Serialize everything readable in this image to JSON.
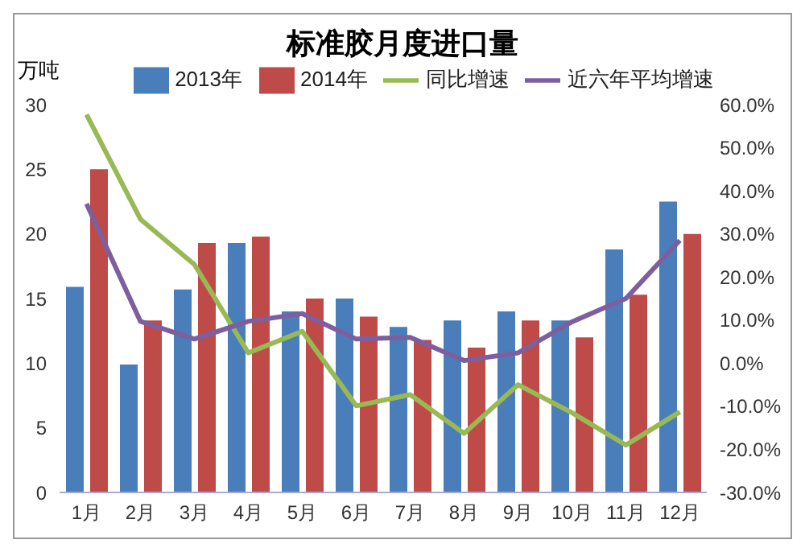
{
  "chart_data": {
    "type": "bar",
    "title": "标准胶月度进口量",
    "ylabel": "万吨",
    "categories": [
      "1月",
      "2月",
      "3月",
      "4月",
      "5月",
      "6月",
      "7月",
      "8月",
      "9月",
      "10月",
      "11月",
      "12月"
    ],
    "series": [
      {
        "name": "2013年",
        "color": "#4a7ebb",
        "values": [
          15.9,
          9.9,
          15.7,
          19.3,
          14,
          15,
          12.8,
          13.3,
          14,
          13.3,
          18.8,
          22.5
        ]
      },
      {
        "name": "2014年",
        "color": "#be4b48",
        "values": [
          25,
          13.3,
          19.3,
          19.8,
          15,
          13.6,
          11.8,
          11.2,
          13.3,
          12,
          15.3,
          20
        ]
      },
      {
        "name": "同比增速",
        "type": "line",
        "axis": "y2",
        "color": "#98b954",
        "values": [
          57.7,
          33.4,
          22.9,
          2.4,
          7.4,
          -9.9,
          -7.3,
          -16.3,
          -5,
          -11.5,
          -19,
          -11.3
        ]
      },
      {
        "name": "近六年平均增速",
        "type": "line",
        "axis": "y2",
        "color": "#7d5fa0",
        "values": [
          37,
          9.7,
          5.6,
          9.7,
          11.5,
          5.6,
          6,
          0.6,
          2.4,
          9.6,
          15,
          28.5
        ]
      }
    ],
    "ylim": [
      0,
      30
    ],
    "yticks": [
      0,
      5,
      10,
      15,
      20,
      25,
      30
    ],
    "y2lim": [
      -30,
      60
    ],
    "y2ticks": [
      {
        "value": -30,
        "label": "-30.0%"
      },
      {
        "value": -20,
        "label": "-20.0%"
      },
      {
        "value": -10,
        "label": "-10.0%"
      },
      {
        "value": 0,
        "label": "0.0%"
      },
      {
        "value": 10,
        "label": "10.0%"
      },
      {
        "value": 20,
        "label": "20.0%"
      },
      {
        "value": 30,
        "label": "30.0%"
      },
      {
        "value": 40,
        "label": "40.0%"
      },
      {
        "value": 50,
        "label": "50.0%"
      },
      {
        "value": 60,
        "label": "60.0%"
      }
    ],
    "legend": "top",
    "grid": false,
    "marker": "none"
  }
}
